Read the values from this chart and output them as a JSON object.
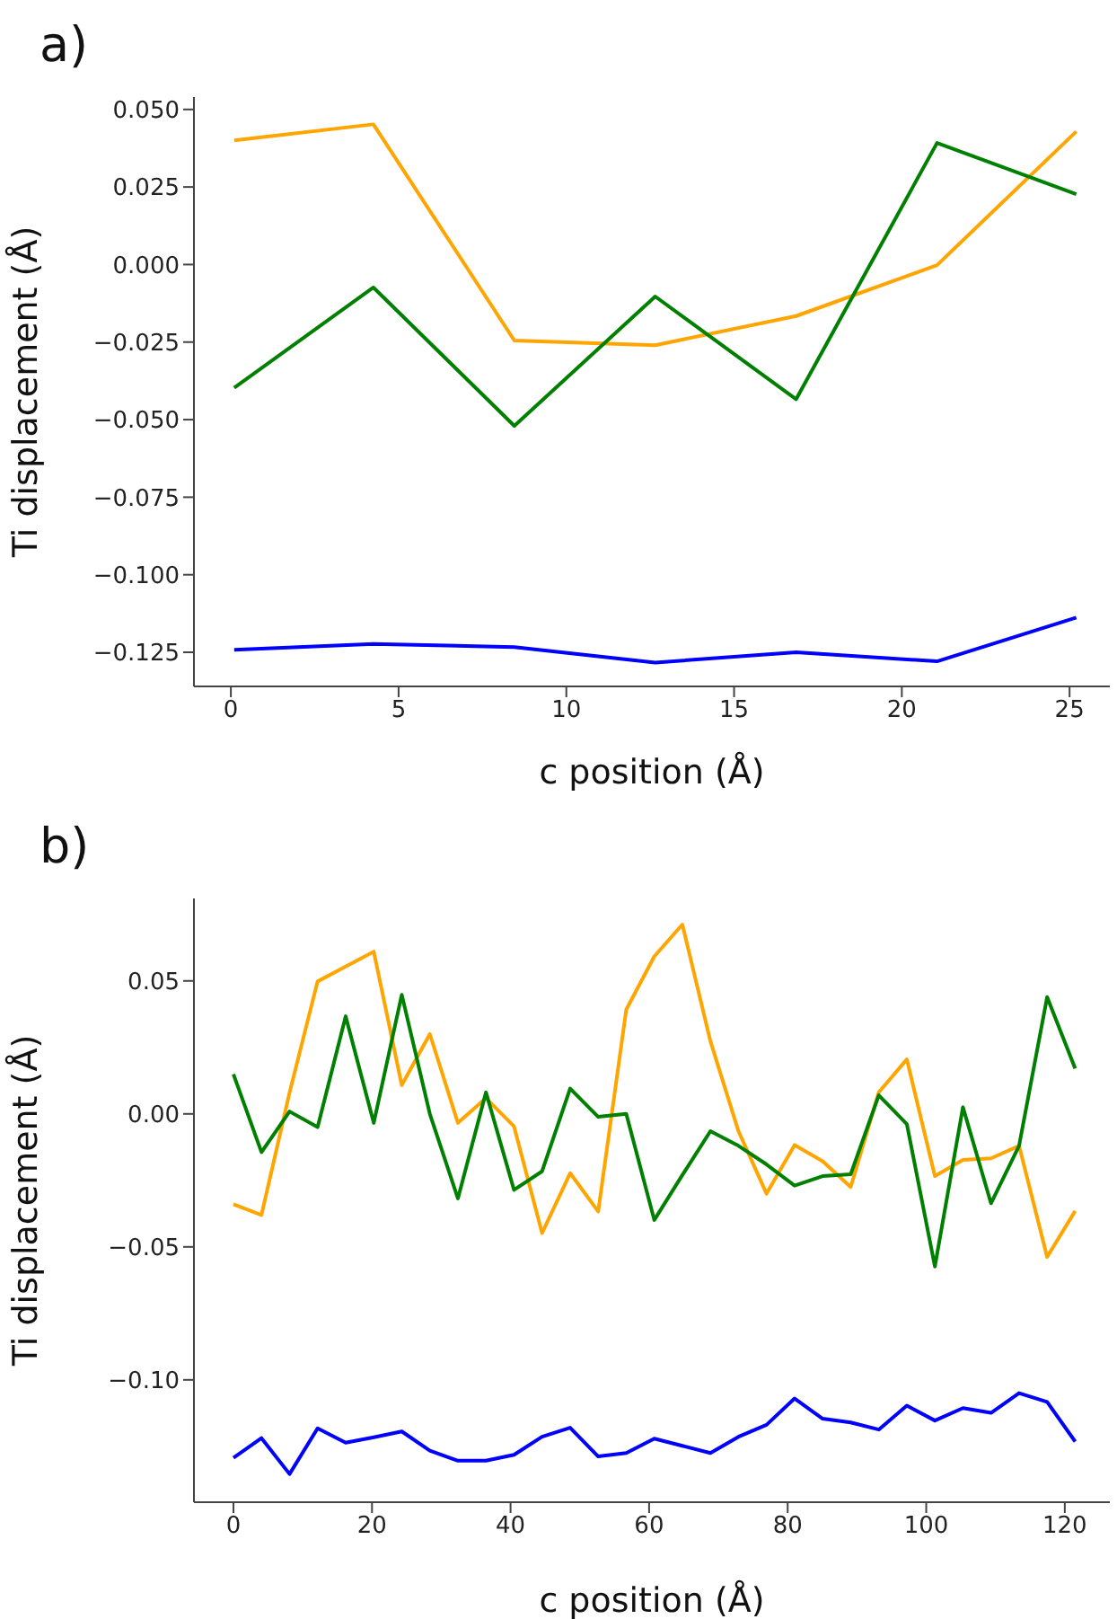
{
  "chart_data": [
    {
      "type": "line",
      "title": "a)",
      "xlabel": "c position (Å)",
      "ylabel": "Ti displacement (Å)",
      "x": [
        0.1,
        4.25,
        8.45,
        12.65,
        16.85,
        21.05,
        25.2
      ],
      "xlim": [
        -1.1,
        26.2
      ],
      "xticks": [
        0,
        5,
        10,
        15,
        20,
        25
      ],
      "ylim": [
        -0.136,
        0.054
      ],
      "yticks": [
        {
          "value": 0.05,
          "label": "0.050"
        },
        {
          "value": 0.025,
          "label": "0.025"
        },
        {
          "value": 0,
          "label": "0.000"
        },
        {
          "value": -0.025,
          "label": "−0.025"
        },
        {
          "value": -0.05,
          "label": "−0.050"
        },
        {
          "value": -0.075,
          "label": "−0.075"
        },
        {
          "value": -0.1,
          "label": "−0.100"
        },
        {
          "value": -0.125,
          "label": "−0.125"
        }
      ],
      "series": [
        {
          "color": "#ffa500",
          "values": [
            0.04,
            0.0452,
            -0.0245,
            -0.026,
            -0.0166,
            -0.0002,
            0.0429
          ]
        },
        {
          "color": "#008000",
          "values": [
            -0.0397,
            -0.0074,
            -0.052,
            -0.0103,
            -0.0434,
            0.0392,
            0.0227
          ]
        },
        {
          "color": "#0000ff",
          "values": [
            -0.1242,
            -0.1223,
            -0.1233,
            -0.1283,
            -0.125,
            -0.1279,
            -0.1138
          ]
        }
      ]
    },
    {
      "type": "line",
      "title": "b)",
      "xlabel": "c position (Å)",
      "ylabel": "Ti displacement (Å)",
      "x": [
        0,
        4.05,
        8.1,
        12.15,
        16.2,
        20.25,
        24.3,
        28.35,
        32.4,
        36.45,
        40.5,
        44.55,
        48.6,
        52.65,
        56.7,
        60.75,
        64.8,
        68.85,
        72.9,
        76.95,
        81,
        85.05,
        89.1,
        93.15,
        97.2,
        101.25,
        105.3,
        109.35,
        113.4,
        117.45,
        121.5
      ],
      "xlim": [
        -5.7,
        126.5
      ],
      "xticks": [
        0,
        20,
        40,
        60,
        80,
        100,
        120
      ],
      "ylim": [
        -0.146,
        0.081
      ],
      "yticks": [
        {
          "value": 0.05,
          "label": "0.05"
        },
        {
          "value": 0,
          "label": "0.00"
        },
        {
          "value": -0.05,
          "label": "−0.05"
        },
        {
          "value": -0.1,
          "label": "−0.10"
        }
      ],
      "series": [
        {
          "color": "#ffa500",
          "values": [
            -0.034,
            -0.038,
            0.008,
            0.0498,
            0.0554,
            0.061,
            0.0108,
            0.03,
            -0.0034,
            0.0059,
            -0.0047,
            -0.0448,
            -0.0223,
            -0.0367,
            0.0392,
            0.0592,
            0.0712,
            0.0273,
            -0.0065,
            -0.03,
            -0.0117,
            -0.0178,
            -0.0275,
            0.0081,
            0.0205,
            -0.0234,
            -0.0173,
            -0.0167,
            -0.012,
            -0.0538,
            -0.0365
          ]
        },
        {
          "color": "#008000",
          "values": [
            0.0149,
            -0.0144,
            0.0009,
            -0.005,
            0.0367,
            -0.0034,
            0.0448,
            0.0,
            -0.0318,
            0.0081,
            -0.0286,
            -0.0216,
            0.0095,
            -0.0011,
            0.0,
            -0.0399,
            -0.023,
            -0.0065,
            -0.012,
            -0.019,
            -0.027,
            -0.0234,
            -0.0227,
            0.007,
            -0.0038,
            -0.0574,
            0.0025,
            -0.0336,
            -0.012,
            0.0439,
            0.0171
          ]
        },
        {
          "color": "#0000ff",
          "values": [
            -0.1293,
            -0.1219,
            -0.1354,
            -0.1182,
            -0.1236,
            -0.1216,
            -0.1194,
            -0.1266,
            -0.1304,
            -0.1304,
            -0.1282,
            -0.1214,
            -0.118,
            -0.1288,
            -0.1275,
            -0.1221,
            -0.1248,
            -0.1275,
            -0.1214,
            -0.1169,
            -0.107,
            -0.1146,
            -0.116,
            -0.1187,
            -0.1097,
            -0.1153,
            -0.1106,
            -0.1124,
            -0.105,
            -0.1083,
            -0.1232
          ]
        }
      ]
    }
  ]
}
